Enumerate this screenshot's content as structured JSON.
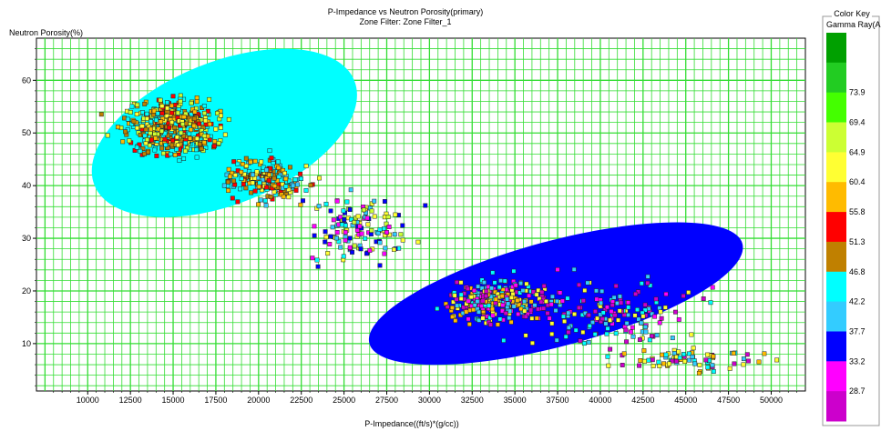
{
  "chart_data": {
    "type": "scatter",
    "title": "P-Impedance vs Neutron Porosity(primary)",
    "subtitle": "Zone Filter: Zone Filter_1",
    "xlabel": "P-Impedance((ft/s)*(g/cc))",
    "ylabel": "Neutron Porosity(%)",
    "xlim": [
      7000,
      52000
    ],
    "ylim": [
      1,
      68
    ],
    "x_ticks": [
      10000,
      12500,
      15000,
      17500,
      20000,
      22500,
      25000,
      27500,
      30000,
      32500,
      35000,
      37500,
      40000,
      42500,
      45000,
      47500,
      50000
    ],
    "y_ticks": [
      10,
      20,
      30,
      40,
      50,
      60
    ],
    "grid": true,
    "legend_position": "right",
    "color_key": {
      "title": "Color Key",
      "variable": "Gamma Ray(AP",
      "bands": [
        {
          "label": "",
          "color": "#00a000"
        },
        {
          "label": "73.9",
          "color": "#22cc22"
        },
        {
          "label": "69.4",
          "color": "#44ff00"
        },
        {
          "label": "64.9",
          "color": "#ccff33"
        },
        {
          "label": "60.4",
          "color": "#ffff33"
        },
        {
          "label": "55.8",
          "color": "#ffbb00"
        },
        {
          "label": "51.3",
          "color": "#ff0000"
        },
        {
          "label": "46.8",
          "color": "#c08000"
        },
        {
          "label": "42.2",
          "color": "#00ffff"
        },
        {
          "label": "37.7",
          "color": "#33ccff"
        },
        {
          "label": "33.2",
          "color": "#0000ff"
        },
        {
          "label": "28.7",
          "color": "#ff00ff"
        },
        {
          "label": "",
          "color": "#cc00cc"
        }
      ]
    },
    "clusters": [
      {
        "name": "",
        "center": [
          18000,
          50
        ],
        "semi_axis_x": 8200,
        "semi_axis_y": 13.5,
        "angle": -22,
        "fill": "#00ffff"
      },
      {
        "name": "",
        "center": [
          37400,
          19.5
        ],
        "semi_axis_x": 11300,
        "semi_axis_y": 10,
        "angle": -15,
        "fill": "#0000ff"
      }
    ],
    "point_groups": [
      {
        "center": [
          15000,
          51
        ],
        "spread": [
          2400,
          4.5
        ],
        "count": 520,
        "palette": [
          "#ffff33",
          "#ffbb00",
          "#c08000",
          "#ccff33",
          "#ff0000",
          "#00ffff"
        ]
      },
      {
        "center": [
          20500,
          41
        ],
        "spread": [
          2000,
          3.5
        ],
        "count": 200,
        "palette": [
          "#ffbb00",
          "#c08000",
          "#ff0000",
          "#ffff33",
          "#33ccff",
          "#00ffff"
        ]
      },
      {
        "center": [
          26000,
          32
        ],
        "spread": [
          2500,
          5.5
        ],
        "count": 130,
        "palette": [
          "#00ffff",
          "#33ccff",
          "#ffff33",
          "#0000ff",
          "#ff00ff",
          "#ccff33"
        ]
      },
      {
        "center": [
          34000,
          18
        ],
        "spread": [
          2800,
          3.5
        ],
        "count": 280,
        "palette": [
          "#ff00ff",
          "#cc00cc",
          "#33ccff",
          "#00ffff",
          "#ffff33",
          "#ffbb00"
        ]
      },
      {
        "center": [
          40500,
          16
        ],
        "spread": [
          4500,
          6
        ],
        "count": 170,
        "palette": [
          "#ff00ff",
          "#33ccff",
          "#00ffff",
          "#cc00cc",
          "#ffff33"
        ]
      },
      {
        "center": [
          45000,
          7
        ],
        "spread": [
          3500,
          1.8
        ],
        "count": 80,
        "palette": [
          "#ffbb00",
          "#ffff33",
          "#33ccff",
          "#cc00cc",
          "#00ffff"
        ]
      }
    ]
  }
}
